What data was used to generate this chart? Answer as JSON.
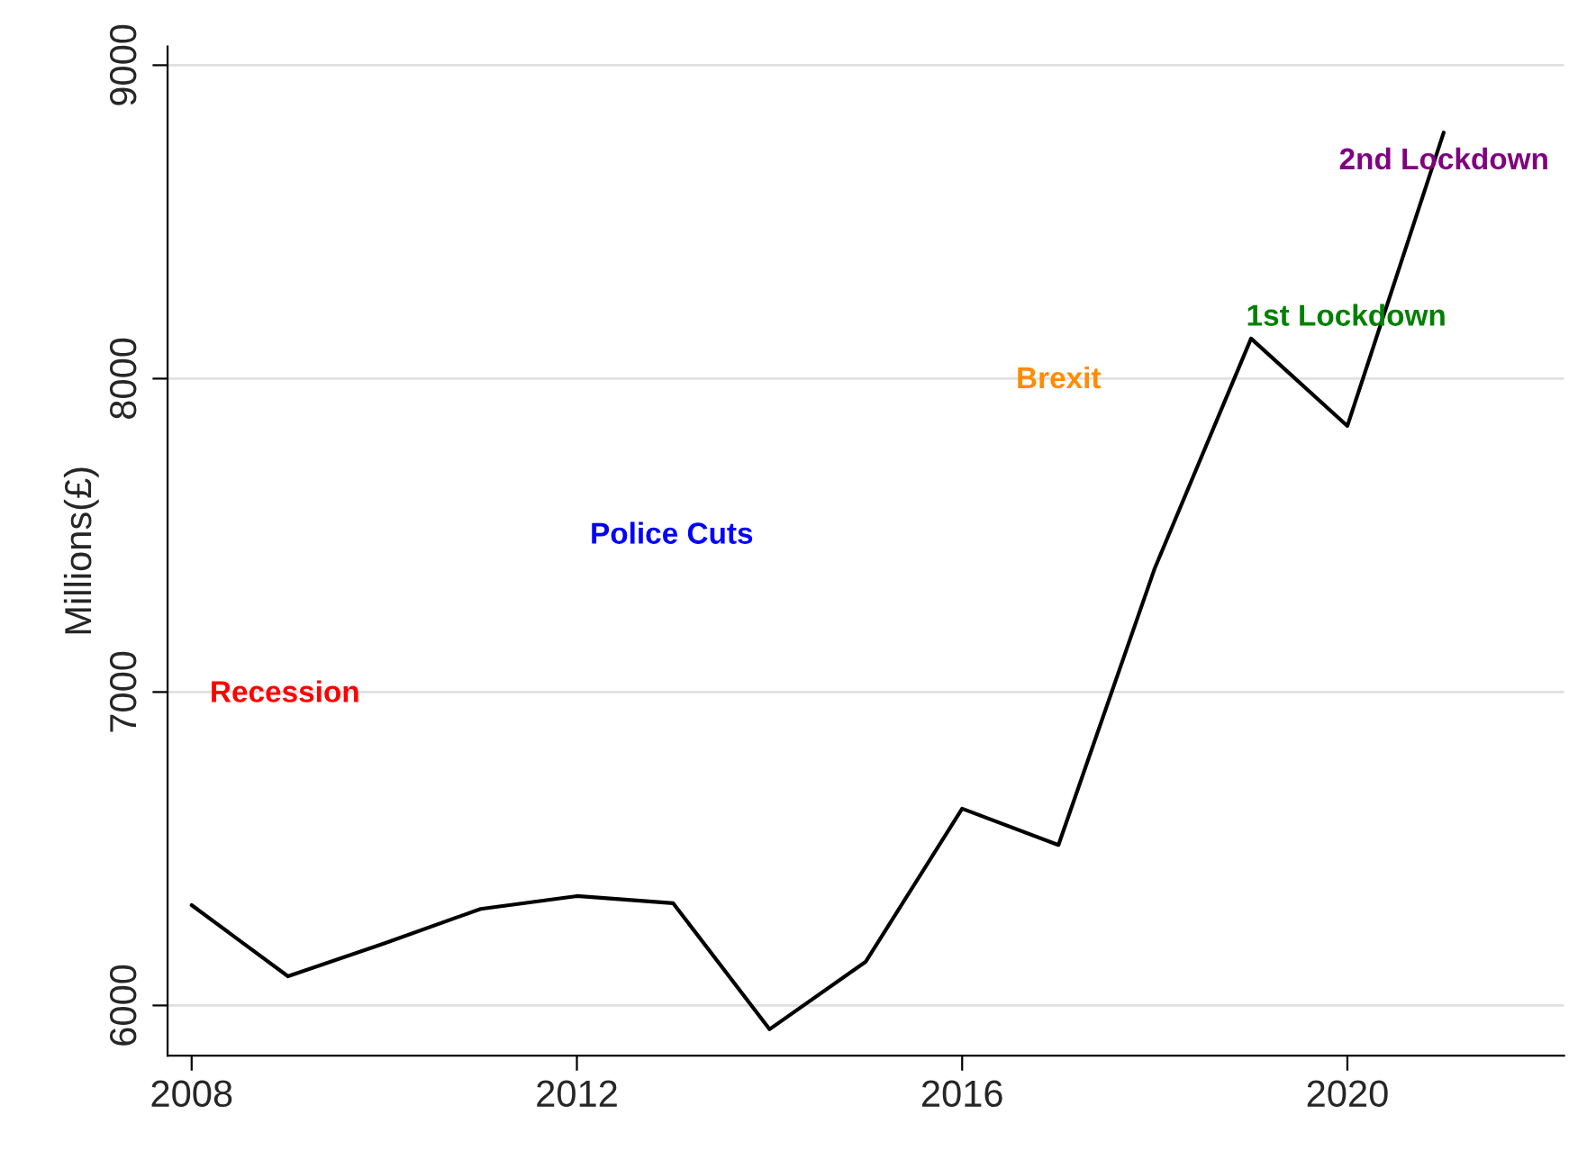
{
  "chart_data": {
    "type": "line",
    "ylabel": "Millions(£)",
    "x": [
      2008,
      2009,
      2010,
      2011,
      2012,
      2013,
      2014,
      2015,
      2016,
      2017,
      2018,
      2019,
      2020,
      2021
    ],
    "series": [
      {
        "color": "#000000",
        "values": [
          6320,
          6093,
          6198,
          6308,
          6349,
          6326,
          5924,
          6140,
          6628,
          6512,
          7395,
          8128,
          7849,
          8785
        ]
      }
    ],
    "xlim": [
      2007.75,
      2022.25
    ],
    "xticks": [
      2008,
      2012,
      2016,
      2020
    ],
    "ylim": [
      5840,
      9060
    ],
    "yticks": [
      6000,
      7000,
      8000,
      9000
    ],
    "grid": "y",
    "annotations": [
      "Recession",
      "Police Cuts",
      "Brexit",
      "1st Lockdown",
      "2nd Lockdown"
    ]
  }
}
